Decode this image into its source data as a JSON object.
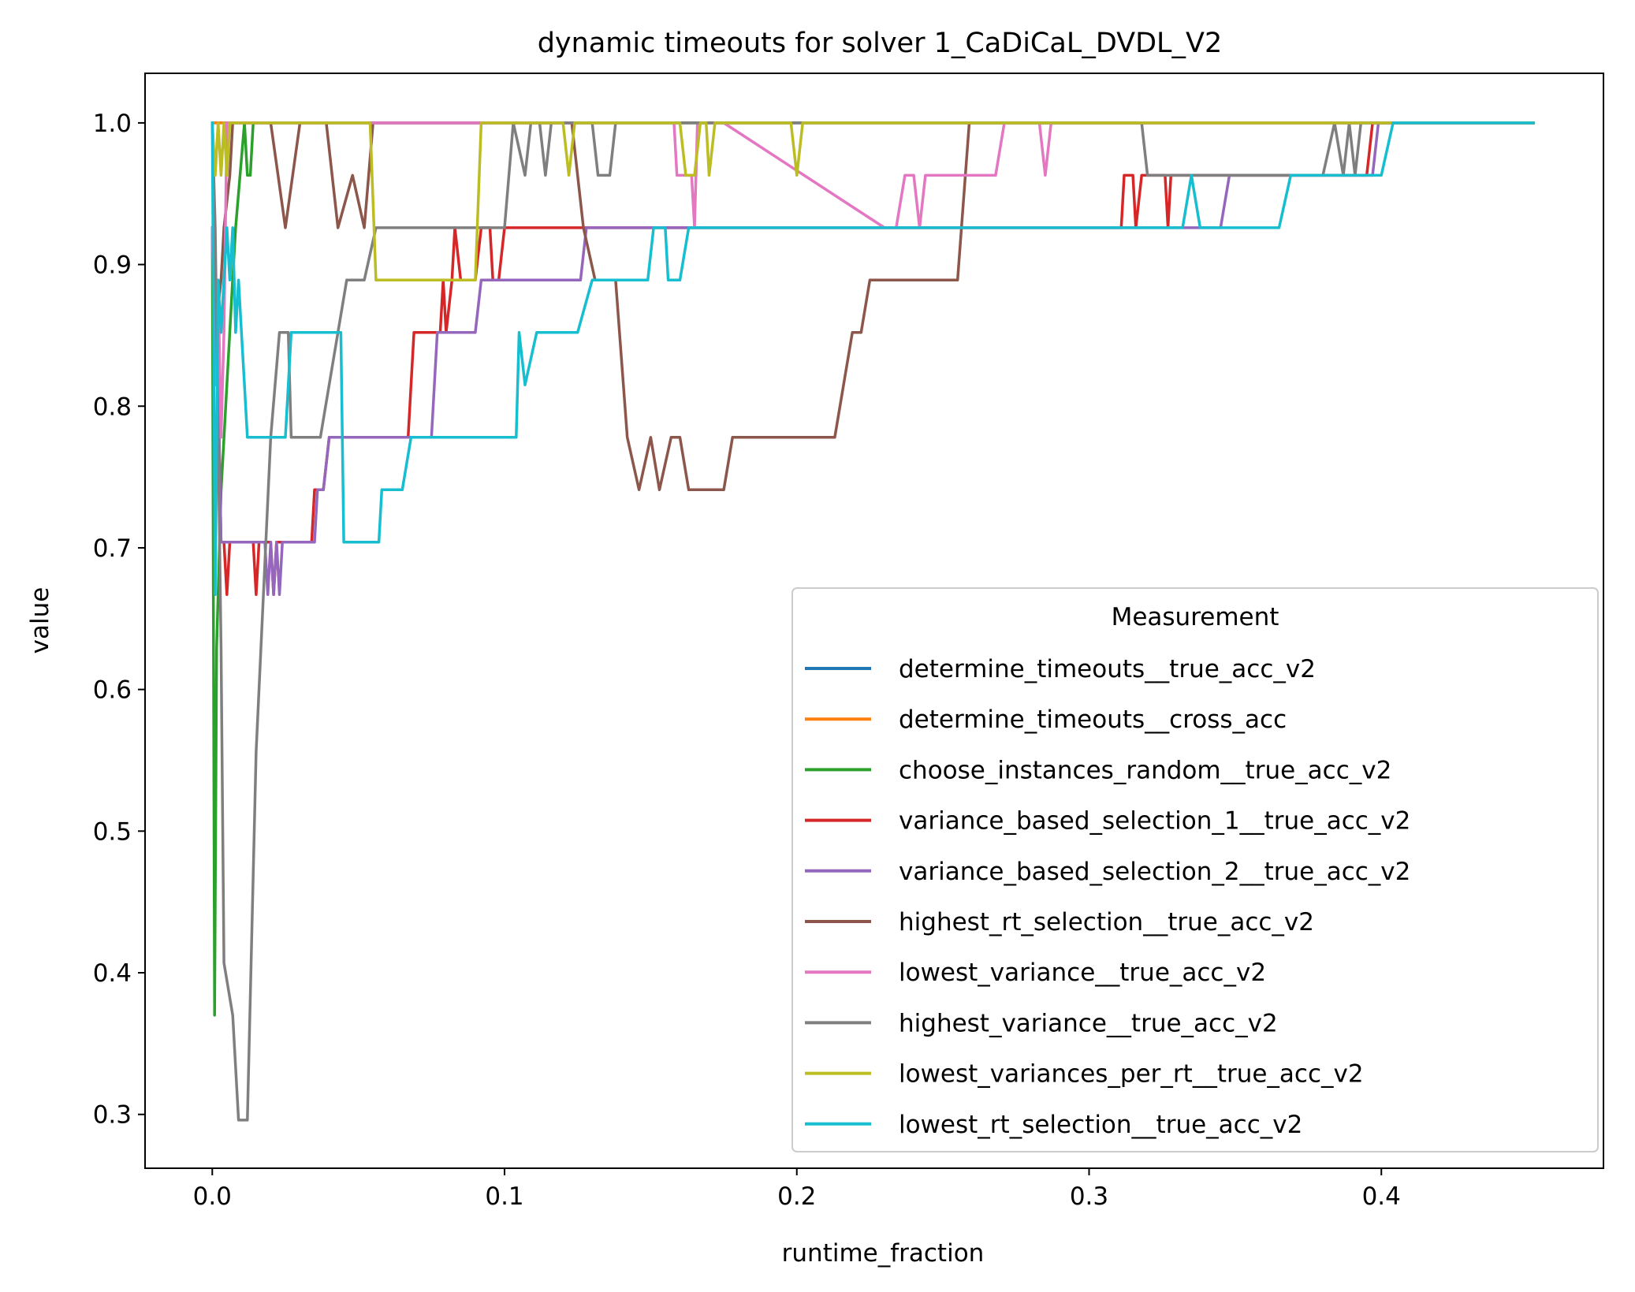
{
  "chart_data": {
    "type": "line",
    "title": "dynamic timeouts for solver 1_CaDiCaL_DVDL_V2",
    "xlabel": "runtime_fraction",
    "ylabel": "value",
    "xlim": [
      -0.023,
      0.476
    ],
    "ylim": [
      0.262,
      1.035
    ],
    "xticks": [
      0.0,
      0.1,
      0.2,
      0.3,
      0.4
    ],
    "xtick_labels": [
      "0.0",
      "0.1",
      "0.2",
      "0.3",
      "0.4"
    ],
    "yticks": [
      0.3,
      0.4,
      0.5,
      0.6,
      0.7,
      0.8,
      0.9,
      1.0
    ],
    "ytick_labels": [
      "0.3",
      "0.4",
      "0.5",
      "0.6",
      "0.7",
      "0.8",
      "0.9",
      "1.0"
    ],
    "grid": false,
    "legend": {
      "title": "Measurement",
      "position": "lower right"
    },
    "series": [
      {
        "name": "determine_timeouts__true_acc_v2",
        "color": "#1f77b4",
        "points": [
          [
            0,
            1.0
          ],
          [
            0.005,
            1.0
          ],
          [
            0.1,
            1.0
          ],
          [
            0.2,
            1.0
          ],
          [
            0.3,
            1.0
          ],
          [
            0.4,
            1.0
          ],
          [
            0.452,
            1.0
          ]
        ]
      },
      {
        "name": "determine_timeouts__cross_acc",
        "color": "#ff7f0e",
        "points": [
          [
            0,
            1.0
          ],
          [
            0.005,
            1.0
          ],
          [
            0.1,
            1.0
          ],
          [
            0.2,
            1.0
          ],
          [
            0.3,
            1.0
          ],
          [
            0.4,
            1.0
          ],
          [
            0.452,
            1.0
          ]
        ]
      },
      {
        "name": "choose_instances_random__true_acc_v2",
        "color": "#2ca02c",
        "points": [
          [
            0,
            0.926
          ],
          [
            0.0008,
            0.37
          ],
          [
            0.0015,
            0.63
          ],
          [
            0.003,
            0.74
          ],
          [
            0.005,
            0.815
          ],
          [
            0.007,
            0.89
          ],
          [
            0.008,
            0.926
          ],
          [
            0.0095,
            0.963
          ],
          [
            0.011,
            1.0
          ],
          [
            0.012,
            0.963
          ],
          [
            0.013,
            0.963
          ],
          [
            0.014,
            1.0
          ],
          [
            0.05,
            1.0
          ],
          [
            0.15,
            1.0
          ],
          [
            0.25,
            1.0
          ],
          [
            0.35,
            1.0
          ],
          [
            0.452,
            1.0
          ]
        ]
      },
      {
        "name": "variance_based_selection_1__true_acc_v2",
        "color": "#d62728",
        "points": [
          [
            0,
            0.926
          ],
          [
            0.001,
            0.852
          ],
          [
            0.002,
            0.815
          ],
          [
            0.003,
            0.704
          ],
          [
            0.004,
            0.704
          ],
          [
            0.005,
            0.667
          ],
          [
            0.006,
            0.704
          ],
          [
            0.014,
            0.704
          ],
          [
            0.015,
            0.667
          ],
          [
            0.016,
            0.704
          ],
          [
            0.02,
            0.704
          ],
          [
            0.021,
            0.667
          ],
          [
            0.022,
            0.704
          ],
          [
            0.034,
            0.704
          ],
          [
            0.035,
            0.741
          ],
          [
            0.038,
            0.741
          ],
          [
            0.04,
            0.778
          ],
          [
            0.067,
            0.778
          ],
          [
            0.069,
            0.852
          ],
          [
            0.078,
            0.852
          ],
          [
            0.079,
            0.889
          ],
          [
            0.08,
            0.852
          ],
          [
            0.082,
            0.889
          ],
          [
            0.083,
            0.926
          ],
          [
            0.085,
            0.889
          ],
          [
            0.09,
            0.889
          ],
          [
            0.092,
            0.926
          ],
          [
            0.095,
            0.926
          ],
          [
            0.096,
            0.889
          ],
          [
            0.098,
            0.889
          ],
          [
            0.1,
            0.926
          ],
          [
            0.13,
            0.926
          ],
          [
            0.2,
            0.926
          ],
          [
            0.28,
            0.926
          ],
          [
            0.311,
            0.926
          ],
          [
            0.312,
            0.963
          ],
          [
            0.315,
            0.963
          ],
          [
            0.316,
            0.926
          ],
          [
            0.318,
            0.963
          ],
          [
            0.326,
            0.963
          ],
          [
            0.327,
            0.926
          ],
          [
            0.328,
            0.963
          ],
          [
            0.395,
            0.963
          ],
          [
            0.397,
            1.0
          ],
          [
            0.452,
            1.0
          ]
        ]
      },
      {
        "name": "variance_based_selection_2__true_acc_v2",
        "color": "#9467bd",
        "points": [
          [
            0,
            0.926
          ],
          [
            0.001,
            0.852
          ],
          [
            0.002,
            0.815
          ],
          [
            0.003,
            0.704
          ],
          [
            0.018,
            0.704
          ],
          [
            0.019,
            0.667
          ],
          [
            0.02,
            0.704
          ],
          [
            0.021,
            0.667
          ],
          [
            0.022,
            0.704
          ],
          [
            0.023,
            0.667
          ],
          [
            0.024,
            0.704
          ],
          [
            0.035,
            0.704
          ],
          [
            0.036,
            0.741
          ],
          [
            0.038,
            0.741
          ],
          [
            0.04,
            0.778
          ],
          [
            0.075,
            0.778
          ],
          [
            0.077,
            0.852
          ],
          [
            0.09,
            0.852
          ],
          [
            0.092,
            0.889
          ],
          [
            0.126,
            0.889
          ],
          [
            0.128,
            0.926
          ],
          [
            0.2,
            0.926
          ],
          [
            0.33,
            0.926
          ],
          [
            0.332,
            0.926
          ],
          [
            0.345,
            0.926
          ],
          [
            0.348,
            0.963
          ],
          [
            0.397,
            0.963
          ],
          [
            0.399,
            1.0
          ],
          [
            0.452,
            1.0
          ]
        ]
      },
      {
        "name": "highest_rt_selection__true_acc_v2",
        "color": "#8c564b",
        "points": [
          [
            0,
            0.926
          ],
          [
            0.001,
            0.852
          ],
          [
            0.003,
            0.889
          ],
          [
            0.004,
            0.926
          ],
          [
            0.006,
            0.963
          ],
          [
            0.007,
            1.0
          ],
          [
            0.02,
            1.0
          ],
          [
            0.025,
            0.926
          ],
          [
            0.03,
            1.0
          ],
          [
            0.039,
            1.0
          ],
          [
            0.043,
            0.926
          ],
          [
            0.048,
            0.963
          ],
          [
            0.052,
            0.926
          ],
          [
            0.055,
            1.0
          ],
          [
            0.123,
            1.0
          ],
          [
            0.127,
            0.926
          ],
          [
            0.131,
            0.889
          ],
          [
            0.138,
            0.889
          ],
          [
            0.142,
            0.778
          ],
          [
            0.146,
            0.741
          ],
          [
            0.15,
            0.778
          ],
          [
            0.153,
            0.741
          ],
          [
            0.157,
            0.778
          ],
          [
            0.16,
            0.778
          ],
          [
            0.163,
            0.741
          ],
          [
            0.175,
            0.741
          ],
          [
            0.178,
            0.778
          ],
          [
            0.213,
            0.778
          ],
          [
            0.219,
            0.852
          ],
          [
            0.222,
            0.852
          ],
          [
            0.225,
            0.889
          ],
          [
            0.255,
            0.889
          ],
          [
            0.259,
            1.0
          ],
          [
            0.452,
            1.0
          ]
        ]
      },
      {
        "name": "lowest_variance__true_acc_v2",
        "color": "#e377c2",
        "points": [
          [
            0,
            0.926
          ],
          [
            0.001,
            0.815
          ],
          [
            0.002,
            0.889
          ],
          [
            0.003,
            0.778
          ],
          [
            0.004,
            0.852
          ],
          [
            0.005,
            1.0
          ],
          [
            0.15,
            1.0
          ],
          [
            0.158,
            1.0
          ],
          [
            0.159,
            0.963
          ],
          [
            0.164,
            0.963
          ],
          [
            0.165,
            0.926
          ],
          [
            0.166,
            1.0
          ],
          [
            0.175,
            1.0
          ],
          [
            0.23,
            0.926
          ],
          [
            0.234,
            0.926
          ],
          [
            0.237,
            0.963
          ],
          [
            0.24,
            0.963
          ],
          [
            0.242,
            0.926
          ],
          [
            0.244,
            0.963
          ],
          [
            0.268,
            0.963
          ],
          [
            0.271,
            1.0
          ],
          [
            0.283,
            1.0
          ],
          [
            0.285,
            0.963
          ],
          [
            0.287,
            1.0
          ],
          [
            0.452,
            1.0
          ]
        ]
      },
      {
        "name": "highest_variance__true_acc_v2",
        "color": "#7f7f7f",
        "points": [
          [
            0,
            1.0
          ],
          [
            0.001,
            0.926
          ],
          [
            0.003,
            0.63
          ],
          [
            0.004,
            0.407
          ],
          [
            0.007,
            0.37
          ],
          [
            0.009,
            0.296
          ],
          [
            0.012,
            0.296
          ],
          [
            0.015,
            0.556
          ],
          [
            0.02,
            0.778
          ],
          [
            0.023,
            0.852
          ],
          [
            0.026,
            0.852
          ],
          [
            0.027,
            0.778
          ],
          [
            0.03,
            0.778
          ],
          [
            0.035,
            0.778
          ],
          [
            0.037,
            0.778
          ],
          [
            0.046,
            0.889
          ],
          [
            0.052,
            0.889
          ],
          [
            0.056,
            0.926
          ],
          [
            0.1,
            0.926
          ],
          [
            0.103,
            1.0
          ],
          [
            0.107,
            0.963
          ],
          [
            0.109,
            1.0
          ],
          [
            0.112,
            1.0
          ],
          [
            0.114,
            0.963
          ],
          [
            0.116,
            1.0
          ],
          [
            0.13,
            1.0
          ],
          [
            0.132,
            0.963
          ],
          [
            0.136,
            0.963
          ],
          [
            0.138,
            1.0
          ],
          [
            0.175,
            1.0
          ],
          [
            0.318,
            1.0
          ],
          [
            0.32,
            0.963
          ],
          [
            0.38,
            0.963
          ],
          [
            0.384,
            1.0
          ],
          [
            0.387,
            0.963
          ],
          [
            0.389,
            1.0
          ],
          [
            0.391,
            0.963
          ],
          [
            0.393,
            1.0
          ],
          [
            0.452,
            1.0
          ]
        ]
      },
      {
        "name": "lowest_variances_per_rt__true_acc_v2",
        "color": "#bcbd22",
        "points": [
          [
            0,
            1.0
          ],
          [
            0.001,
            0.963
          ],
          [
            0.002,
            1.0
          ],
          [
            0.003,
            0.963
          ],
          [
            0.004,
            1.0
          ],
          [
            0.005,
            0.963
          ],
          [
            0.006,
            1.0
          ],
          [
            0.054,
            1.0
          ],
          [
            0.056,
            0.889
          ],
          [
            0.09,
            0.889
          ],
          [
            0.092,
            1.0
          ],
          [
            0.12,
            1.0
          ],
          [
            0.122,
            0.963
          ],
          [
            0.124,
            1.0
          ],
          [
            0.16,
            1.0
          ],
          [
            0.162,
            0.963
          ],
          [
            0.165,
            0.963
          ],
          [
            0.167,
            1.0
          ],
          [
            0.169,
            1.0
          ],
          [
            0.17,
            0.963
          ],
          [
            0.172,
            1.0
          ],
          [
            0.198,
            1.0
          ],
          [
            0.2,
            0.963
          ],
          [
            0.202,
            1.0
          ],
          [
            0.452,
            1.0
          ]
        ]
      },
      {
        "name": "lowest_rt_selection__true_acc_v2",
        "color": "#17becf",
        "points": [
          [
            0,
            1.0
          ],
          [
            0.001,
            0.667
          ],
          [
            0.002,
            0.889
          ],
          [
            0.003,
            0.852
          ],
          [
            0.004,
            0.889
          ],
          [
            0.005,
            0.926
          ],
          [
            0.006,
            0.889
          ],
          [
            0.007,
            0.926
          ],
          [
            0.008,
            0.852
          ],
          [
            0.009,
            0.889
          ],
          [
            0.01,
            0.852
          ],
          [
            0.011,
            0.815
          ],
          [
            0.012,
            0.778
          ],
          [
            0.025,
            0.778
          ],
          [
            0.027,
            0.852
          ],
          [
            0.044,
            0.852
          ],
          [
            0.045,
            0.704
          ],
          [
            0.057,
            0.704
          ],
          [
            0.058,
            0.741
          ],
          [
            0.065,
            0.741
          ],
          [
            0.068,
            0.778
          ],
          [
            0.104,
            0.778
          ],
          [
            0.105,
            0.852
          ],
          [
            0.107,
            0.815
          ],
          [
            0.111,
            0.852
          ],
          [
            0.125,
            0.852
          ],
          [
            0.13,
            0.889
          ],
          [
            0.149,
            0.889
          ],
          [
            0.151,
            0.926
          ],
          [
            0.155,
            0.926
          ],
          [
            0.156,
            0.889
          ],
          [
            0.16,
            0.889
          ],
          [
            0.163,
            0.926
          ],
          [
            0.3,
            0.926
          ],
          [
            0.332,
            0.926
          ],
          [
            0.335,
            0.963
          ],
          [
            0.338,
            0.926
          ],
          [
            0.365,
            0.926
          ],
          [
            0.369,
            0.963
          ],
          [
            0.4,
            0.963
          ],
          [
            0.404,
            1.0
          ],
          [
            0.452,
            1.0
          ]
        ]
      }
    ]
  }
}
